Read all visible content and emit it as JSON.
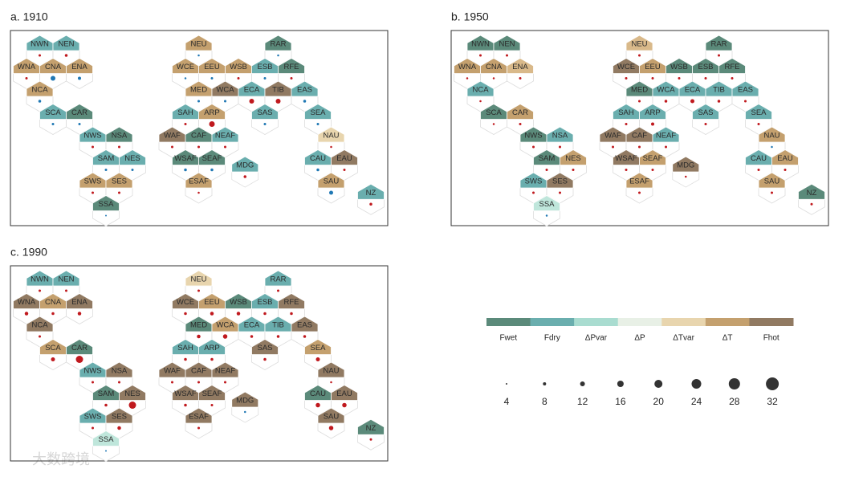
{
  "panels": [
    {
      "title": "a. 1910",
      "regions": [
        {
          "label": "NWN",
          "fill": "#6aaeae",
          "value": 6,
          "dot": "#c0191e"
        },
        {
          "label": "NEN",
          "fill": "#6aaeae",
          "value": 7,
          "dot": "#c0191e"
        },
        {
          "label": "NEU",
          "fill": "#c4a06e",
          "value": 5,
          "dot": "#2078b4"
        },
        {
          "label": "RAR",
          "fill": "#5b8a7a",
          "value": 5,
          "dot": "#2078b4"
        },
        {
          "label": "WNA",
          "fill": "#c4a06e",
          "value": 6,
          "dot": "#c0191e"
        },
        {
          "label": "CNA",
          "fill": "#c4a06e",
          "value": 12,
          "dot": "#2078b4"
        },
        {
          "label": "ENA",
          "fill": "#c4a06e",
          "value": 8,
          "dot": "#2078b4"
        },
        {
          "label": "WCE",
          "fill": "#c4a06e",
          "value": 5,
          "dot": "#2078b4"
        },
        {
          "label": "EEU",
          "fill": "#c4a06e",
          "value": 6,
          "dot": "#2078b4"
        },
        {
          "label": "WSB",
          "fill": "#c4a06e",
          "value": 6,
          "dot": "#c0191e"
        },
        {
          "label": "ESB",
          "fill": "#6aaeae",
          "value": 6,
          "dot": "#2078b4"
        },
        {
          "label": "RFE",
          "fill": "#5b8a7a",
          "value": 6,
          "dot": "#c0191e"
        },
        {
          "label": "NCA",
          "fill": "#c4a06e",
          "value": 7,
          "dot": "#2078b4"
        },
        {
          "label": "MED",
          "fill": "#c4a06e",
          "value": 6,
          "dot": "#2078b4"
        },
        {
          "label": "WCA",
          "fill": "#917a62",
          "value": 6,
          "dot": "#2078b4"
        },
        {
          "label": "ECA",
          "fill": "#6aaeae",
          "value": 12,
          "dot": "#c0191e"
        },
        {
          "label": "TIB",
          "fill": "#917a62",
          "value": 12,
          "dot": "#c0191e"
        },
        {
          "label": "EAS",
          "fill": "#6aaeae",
          "value": 7,
          "dot": "#2078b4"
        },
        {
          "label": "SCA",
          "fill": "#6aaeae",
          "value": 6,
          "dot": "#2078b4"
        },
        {
          "label": "CAR",
          "fill": "#5b8a7a",
          "value": 6,
          "dot": "#2078b4"
        },
        {
          "label": "SAH",
          "fill": "#6aaeae",
          "value": 6,
          "dot": "#c0191e"
        },
        {
          "label": "ARP",
          "fill": "#c4a06e",
          "value": 14,
          "dot": "#c0191e"
        },
        {
          "label": "SAS",
          "fill": "#6aaeae",
          "value": 6,
          "dot": "#2078b4"
        },
        {
          "label": "SEA",
          "fill": "#6aaeae",
          "value": 6,
          "dot": "#2078b4"
        },
        {
          "label": "NWS",
          "fill": "#6aaeae",
          "value": 6,
          "dot": "#c0191e"
        },
        {
          "label": "NSA",
          "fill": "#5b8a7a",
          "value": 6,
          "dot": "#c0191e"
        },
        {
          "label": "WAF",
          "fill": "#917a62",
          "value": 6,
          "dot": "#c0191e"
        },
        {
          "label": "CAF",
          "fill": "#5b8a7a",
          "value": 6,
          "dot": "#c0191e"
        },
        {
          "label": "NEAF",
          "fill": "#6aaeae",
          "value": 6,
          "dot": "#c0191e"
        },
        {
          "label": "NAU",
          "fill": "#e8d5ae",
          "value": 5,
          "dot": "#c0191e"
        },
        {
          "label": "SAM",
          "fill": "#6aaeae",
          "value": 6,
          "dot": "#2078b4"
        },
        {
          "label": "NES",
          "fill": "#6aaeae",
          "value": 6,
          "dot": "#2078b4"
        },
        {
          "label": "WSAF",
          "fill": "#5b8a7a",
          "value": 7,
          "dot": "#2078b4"
        },
        {
          "label": "SEAF",
          "fill": "#5b8a7a",
          "value": 7,
          "dot": "#2078b4"
        },
        {
          "label": "MDG",
          "fill": "#6aaeae",
          "value": 7,
          "dot": "#c0191e"
        },
        {
          "label": "CAU",
          "fill": "#6aaeae",
          "value": 7,
          "dot": "#2078b4"
        },
        {
          "label": "EAU",
          "fill": "#917a62",
          "value": 6,
          "dot": "#c0191e"
        },
        {
          "label": "SWS",
          "fill": "#c4a06e",
          "value": 6,
          "dot": "#c0191e"
        },
        {
          "label": "SES",
          "fill": "#c4a06e",
          "value": 6,
          "dot": "#c0191e"
        },
        {
          "label": "ESAF",
          "fill": "#c4a06e",
          "value": 5,
          "dot": "#c0191e"
        },
        {
          "label": "SAU",
          "fill": "#c4a06e",
          "value": 10,
          "dot": "#2078b4"
        },
        {
          "label": "NZ",
          "fill": "#6aaeae",
          "value": 7,
          "dot": "#c0191e"
        },
        {
          "label": "SSA",
          "fill": "#5b8a7a",
          "value": 4,
          "dot": "#2078b4"
        }
      ]
    },
    {
      "title": "b. 1950",
      "regions": [
        {
          "label": "NWN",
          "fill": "#5b8a7a",
          "value": 6,
          "dot": "#c0191e"
        },
        {
          "label": "NEN",
          "fill": "#5b8a7a",
          "value": 6,
          "dot": "#c0191e"
        },
        {
          "label": "NEU",
          "fill": "#d9b98a",
          "value": 6,
          "dot": "#c0191e"
        },
        {
          "label": "RAR",
          "fill": "#5b8a7a",
          "value": 6,
          "dot": "#c0191e"
        },
        {
          "label": "WNA",
          "fill": "#c4a06e",
          "value": 5,
          "dot": "#c0191e"
        },
        {
          "label": "CNA",
          "fill": "#c4a06e",
          "value": 5,
          "dot": "#c0191e"
        },
        {
          "label": "ENA",
          "fill": "#d9b98a",
          "value": 6,
          "dot": "#c0191e"
        },
        {
          "label": "WCE",
          "fill": "#917a62",
          "value": 6,
          "dot": "#c0191e"
        },
        {
          "label": "EEU",
          "fill": "#c4a06e",
          "value": 6,
          "dot": "#c0191e"
        },
        {
          "label": "WSB",
          "fill": "#5b8a7a",
          "value": 6,
          "dot": "#c0191e"
        },
        {
          "label": "ESB",
          "fill": "#5b8a7a",
          "value": 6,
          "dot": "#c0191e"
        },
        {
          "label": "RFE",
          "fill": "#5b8a7a",
          "value": 6,
          "dot": "#c0191e"
        },
        {
          "label": "NCA",
          "fill": "#6aaeae",
          "value": 5,
          "dot": "#c0191e"
        },
        {
          "label": "MED",
          "fill": "#5b8a7a",
          "value": 6,
          "dot": "#c0191e"
        },
        {
          "label": "WCA",
          "fill": "#6aaeae",
          "value": 7,
          "dot": "#c0191e"
        },
        {
          "label": "ECA",
          "fill": "#6aaeae",
          "value": 10,
          "dot": "#c0191e"
        },
        {
          "label": "TIB",
          "fill": "#6aaeae",
          "value": 7,
          "dot": "#c0191e"
        },
        {
          "label": "EAS",
          "fill": "#6aaeae",
          "value": 6,
          "dot": "#c0191e"
        },
        {
          "label": "SCA",
          "fill": "#5b8a7a",
          "value": 5,
          "dot": "#c0191e"
        },
        {
          "label": "CAR",
          "fill": "#c4a06e",
          "value": 6,
          "dot": "#c0191e"
        },
        {
          "label": "SAH",
          "fill": "#6aaeae",
          "value": 6,
          "dot": "#c0191e"
        },
        {
          "label": "ARP",
          "fill": "#6aaeae",
          "value": 8,
          "dot": "#c0191e"
        },
        {
          "label": "SAS",
          "fill": "#6aaeae",
          "value": 6,
          "dot": "#c0191e"
        },
        {
          "label": "SEA",
          "fill": "#6aaeae",
          "value": 6,
          "dot": "#c0191e"
        },
        {
          "label": "NWS",
          "fill": "#5b8a7a",
          "value": 6,
          "dot": "#c0191e"
        },
        {
          "label": "NSA",
          "fill": "#6aaeae",
          "value": 6,
          "dot": "#c0191e"
        },
        {
          "label": "WAF",
          "fill": "#917a62",
          "value": 6,
          "dot": "#c0191e"
        },
        {
          "label": "CAF",
          "fill": "#917a62",
          "value": 6,
          "dot": "#c0191e"
        },
        {
          "label": "NEAF",
          "fill": "#6aaeae",
          "value": 6,
          "dot": "#c0191e"
        },
        {
          "label": "NAU",
          "fill": "#c4a06e",
          "value": 5,
          "dot": "#2078b4"
        },
        {
          "label": "SAM",
          "fill": "#5b8a7a",
          "value": 6,
          "dot": "#c0191e"
        },
        {
          "label": "NES",
          "fill": "#c4a06e",
          "value": 6,
          "dot": "#c0191e"
        },
        {
          "label": "WSAF",
          "fill": "#917a62",
          "value": 6,
          "dot": "#c0191e"
        },
        {
          "label": "SEAF",
          "fill": "#c4a06e",
          "value": 6,
          "dot": "#c0191e"
        },
        {
          "label": "MDG",
          "fill": "#917a62",
          "value": 5,
          "dot": "#c0191e"
        },
        {
          "label": "CAU",
          "fill": "#6aaeae",
          "value": 6,
          "dot": "#c0191e"
        },
        {
          "label": "EAU",
          "fill": "#c4a06e",
          "value": 6,
          "dot": "#c0191e"
        },
        {
          "label": "SWS",
          "fill": "#6aaeae",
          "value": 6,
          "dot": "#c0191e"
        },
        {
          "label": "SES",
          "fill": "#917a62",
          "value": 6,
          "dot": "#c0191e"
        },
        {
          "label": "ESAF",
          "fill": "#c4a06e",
          "value": 6,
          "dot": "#c0191e"
        },
        {
          "label": "SAU",
          "fill": "#c4a06e",
          "value": 6,
          "dot": "#c0191e"
        },
        {
          "label": "NZ",
          "fill": "#5b8a7a",
          "value": 6,
          "dot": "#c0191e"
        },
        {
          "label": "SSA",
          "fill": "#bfe6db",
          "value": 5,
          "dot": "#2078b4"
        }
      ]
    },
    {
      "title": "c. 1990",
      "regions": [
        {
          "label": "NWN",
          "fill": "#6aaeae",
          "value": 6,
          "dot": "#c0191e"
        },
        {
          "label": "NEN",
          "fill": "#6aaeae",
          "value": 6,
          "dot": "#c0191e"
        },
        {
          "label": "NEU",
          "fill": "#e8d5ae",
          "value": 6,
          "dot": "#c0191e"
        },
        {
          "label": "RAR",
          "fill": "#6aaeae",
          "value": 6,
          "dot": "#c0191e"
        },
        {
          "label": "WNA",
          "fill": "#917a62",
          "value": 9,
          "dot": "#c0191e"
        },
        {
          "label": "CNA",
          "fill": "#c4a06e",
          "value": 7,
          "dot": "#c0191e"
        },
        {
          "label": "ENA",
          "fill": "#917a62",
          "value": 9,
          "dot": "#c0191e"
        },
        {
          "label": "WCE",
          "fill": "#917a62",
          "value": 7,
          "dot": "#c0191e"
        },
        {
          "label": "EEU",
          "fill": "#c4a06e",
          "value": 9,
          "dot": "#c0191e"
        },
        {
          "label": "WSB",
          "fill": "#5b8a7a",
          "value": 9,
          "dot": "#c0191e"
        },
        {
          "label": "ESB",
          "fill": "#6aaeae",
          "value": 7,
          "dot": "#c0191e"
        },
        {
          "label": "RFE",
          "fill": "#917a62",
          "value": 7,
          "dot": "#c0191e"
        },
        {
          "label": "NCA",
          "fill": "#917a62",
          "value": 6,
          "dot": "#c0191e"
        },
        {
          "label": "MED",
          "fill": "#5b8a7a",
          "value": 9,
          "dot": "#c0191e"
        },
        {
          "label": "WCA",
          "fill": "#c4a06e",
          "value": 11,
          "dot": "#c0191e"
        },
        {
          "label": "ECA",
          "fill": "#6aaeae",
          "value": 7,
          "dot": "#c0191e"
        },
        {
          "label": "TIB",
          "fill": "#6aaeae",
          "value": 7,
          "dot": "#c0191e"
        },
        {
          "label": "EAS",
          "fill": "#917a62",
          "value": 7,
          "dot": "#c0191e"
        },
        {
          "label": "SCA",
          "fill": "#c4a06e",
          "value": 10,
          "dot": "#c0191e"
        },
        {
          "label": "CAR",
          "fill": "#5b8a7a",
          "value": 18,
          "dot": "#c0191e"
        },
        {
          "label": "SAH",
          "fill": "#6aaeae",
          "value": 7,
          "dot": "#c0191e"
        },
        {
          "label": "ARP",
          "fill": "#6aaeae",
          "value": 7,
          "dot": "#c0191e"
        },
        {
          "label": "SAS",
          "fill": "#917a62",
          "value": 7,
          "dot": "#c0191e"
        },
        {
          "label": "SEA",
          "fill": "#c4a06e",
          "value": 10,
          "dot": "#c0191e"
        },
        {
          "label": "NWS",
          "fill": "#6aaeae",
          "value": 6,
          "dot": "#c0191e"
        },
        {
          "label": "NSA",
          "fill": "#917a62",
          "value": 6,
          "dot": "#c0191e"
        },
        {
          "label": "WAF",
          "fill": "#917a62",
          "value": 6,
          "dot": "#c0191e"
        },
        {
          "label": "CAF",
          "fill": "#917a62",
          "value": 6,
          "dot": "#c0191e"
        },
        {
          "label": "NEAF",
          "fill": "#917a62",
          "value": 6,
          "dot": "#c0191e"
        },
        {
          "label": "NAU",
          "fill": "#917a62",
          "value": 5,
          "dot": "#c0191e"
        },
        {
          "label": "SAM",
          "fill": "#5b8a7a",
          "value": 7,
          "dot": "#c0191e"
        },
        {
          "label": "NES",
          "fill": "#917a62",
          "value": 18,
          "dot": "#c0191e"
        },
        {
          "label": "WSAF",
          "fill": "#917a62",
          "value": 7,
          "dot": "#c0191e"
        },
        {
          "label": "SEAF",
          "fill": "#917a62",
          "value": 6,
          "dot": "#c0191e"
        },
        {
          "label": "MDG",
          "fill": "#917a62",
          "value": 5,
          "dot": "#2078b4"
        },
        {
          "label": "CAU",
          "fill": "#5b8a7a",
          "value": 11,
          "dot": "#c0191e"
        },
        {
          "label": "EAU",
          "fill": "#917a62",
          "value": 11,
          "dot": "#c0191e"
        },
        {
          "label": "SWS",
          "fill": "#6aaeae",
          "value": 6,
          "dot": "#c0191e"
        },
        {
          "label": "SES",
          "fill": "#917a62",
          "value": 9,
          "dot": "#c0191e"
        },
        {
          "label": "ESAF",
          "fill": "#917a62",
          "value": 6,
          "dot": "#c0191e"
        },
        {
          "label": "SAU",
          "fill": "#917a62",
          "value": 11,
          "dot": "#c0191e"
        },
        {
          "label": "NZ",
          "fill": "#5b8a7a",
          "value": 6,
          "dot": "#c0191e"
        },
        {
          "label": "SSA",
          "fill": "#bfe6db",
          "value": 4,
          "dot": "#2078b4"
        }
      ]
    }
  ],
  "legend": {
    "classes": [
      {
        "label": "Fwet",
        "color": "#5b8a7a"
      },
      {
        "label": "Fdry",
        "color": "#6aaeae"
      },
      {
        "label": "ΔPvar",
        "color": "#a9dcd0"
      },
      {
        "label": "ΔP",
        "color": "#e8f0e6"
      },
      {
        "label": "ΔTvar",
        "color": "#e8d5ae"
      },
      {
        "label": "ΔT",
        "color": "#c4a06e"
      },
      {
        "label": "Fhot",
        "color": "#917a62"
      }
    ],
    "sizes": [
      4,
      8,
      12,
      16,
      20,
      24,
      28,
      32
    ],
    "size_color": "#333333"
  },
  "watermark": "大数跨境"
}
